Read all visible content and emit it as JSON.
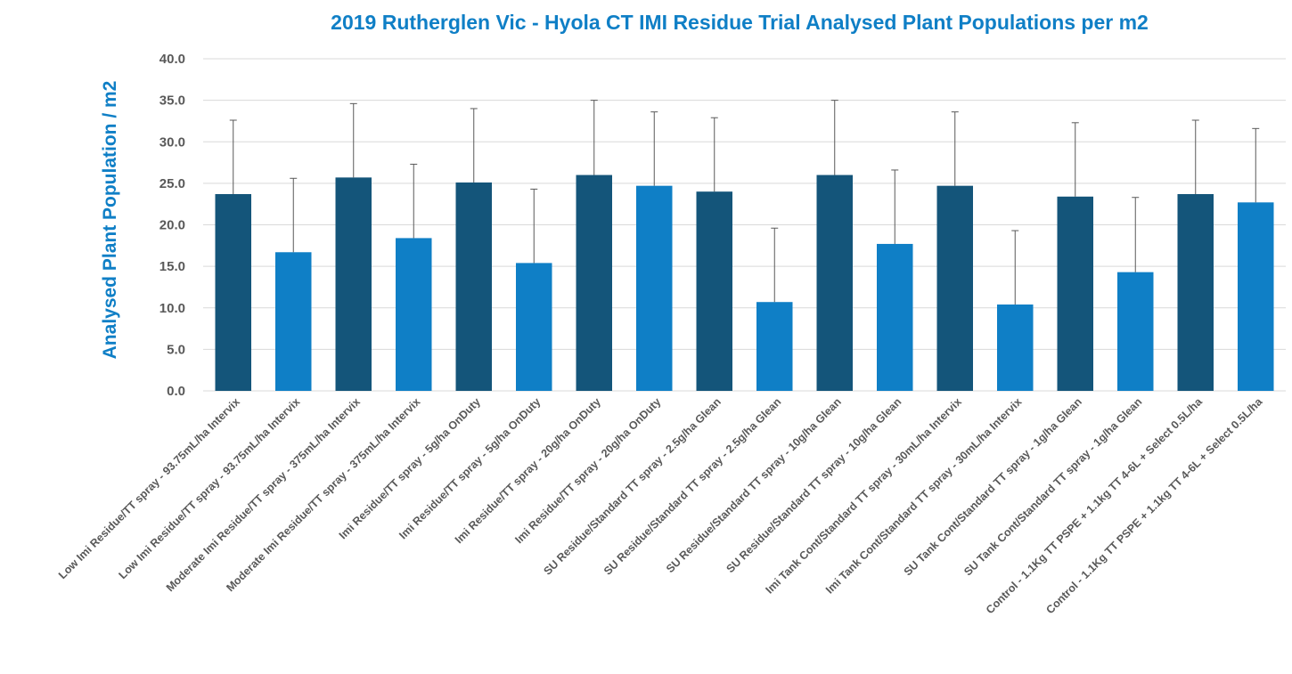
{
  "chart_data": {
    "type": "bar",
    "title": "2019 Rutherglen Vic - Hyola CT IMI Residue Trial Analysed Plant Populations per m2",
    "xlabel": "",
    "ylabel": "Analysed Plant Population / m2",
    "ylim": [
      0,
      40
    ],
    "yticks": [
      "0.0",
      "5.0",
      "10.0",
      "15.0",
      "20.0",
      "25.0",
      "30.0",
      "35.0",
      "40.0"
    ],
    "grid": true,
    "legend": "none",
    "colors": {
      "dark": "#14557a",
      "light": "#0f7fc6",
      "gridline": "#d9d9d9",
      "axis_text": "#595959",
      "error_bar": "#595959"
    },
    "categories": [
      "Low Imi Residue/TT spray - 93.75mL/ha Intervix",
      "Low Imi Residue/TT spray - 93.75mL/ha Intervix",
      "Moderate Imi Residue/TT spray - 375mL/ha Intervix",
      "Moderate Imi Residue/TT spray - 375mL/ha Intervix",
      "Imi Residue/TT spray - 5g/ha OnDuty",
      "Imi Residue/TT spray - 5g/ha OnDuty",
      "Imi Residue/TT spray - 20g/ha OnDuty",
      "Imi Residue/TT spray - 20g/ha OnDuty",
      "SU Residue/Standard TT spray - 2.5g/ha Glean",
      "SU Residue/Standard TT spray - 2.5g/ha Glean",
      "SU Residue/Standard TT spray - 10g/ha Glean",
      "SU Residue/Standard TT spray - 10g/ha Glean",
      "Imi Tank Cont/Standard TT spray - 30mL/ha Intervix",
      "Imi Tank Cont/Standard TT spray - 30mL/ha Intervix",
      "SU Tank Cont/Standard TT spray - 1g/ha Glean",
      "SU Tank Cont/Standard TT spray - 1g/ha Glean",
      "Control - 1.1Kg TT PSPE + 1.1kg TT 4-6L + Select 0.5L/ha",
      "Control - 1.1Kg TT PSPE + 1.1kg TT 4-6L + Select 0.5L/ha"
    ],
    "values": [
      23.7,
      16.7,
      25.7,
      18.4,
      25.1,
      15.4,
      26.0,
      24.7,
      24.0,
      10.7,
      26.0,
      17.7,
      24.7,
      10.4,
      23.4,
      14.3,
      23.7,
      22.7
    ],
    "error_upper": [
      32.6,
      25.6,
      34.6,
      27.3,
      34.0,
      24.3,
      35.0,
      33.6,
      32.9,
      19.6,
      35.0,
      26.6,
      33.6,
      19.3,
      32.3,
      23.3,
      32.6,
      31.6
    ],
    "bar_shades": [
      "dark",
      "light",
      "dark",
      "light",
      "dark",
      "light",
      "dark",
      "light",
      "dark",
      "light",
      "dark",
      "light",
      "dark",
      "light",
      "dark",
      "light",
      "dark",
      "light"
    ]
  }
}
